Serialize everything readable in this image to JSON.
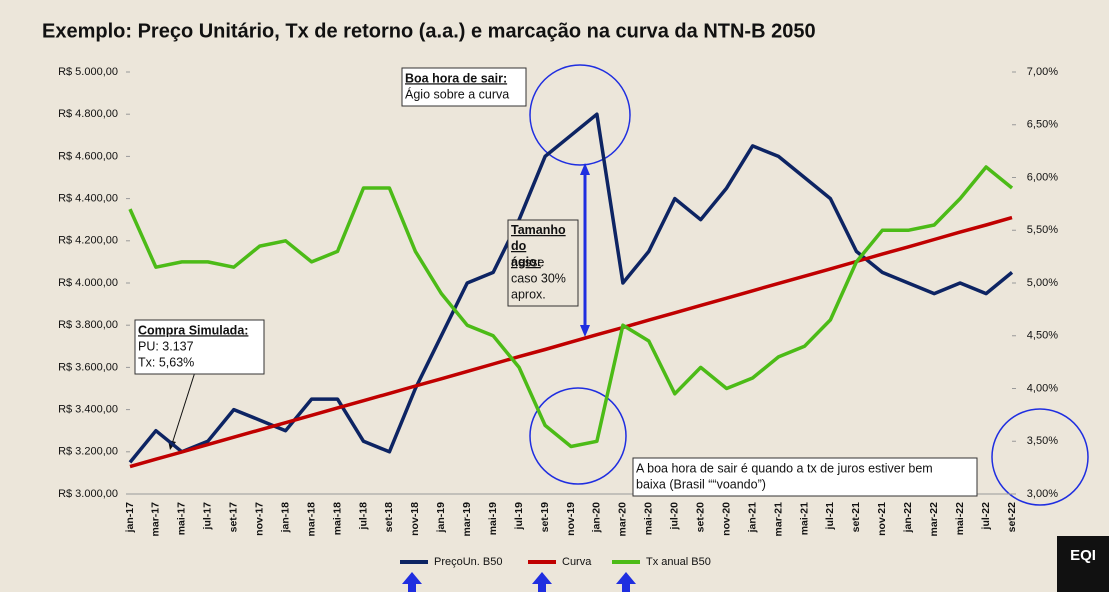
{
  "chart_data": {
    "type": "line",
    "title": "Exemplo: Preço Unitário, Tx de retorno (a.a.) e marcação na curva da NTN-B 2050",
    "categories": [
      "jan-17",
      "mar-17",
      "mai-17",
      "jul-17",
      "set-17",
      "nov-17",
      "jan-18",
      "mar-18",
      "mai-18",
      "jul-18",
      "set-18",
      "nov-18",
      "jan-19",
      "mar-19",
      "mai-19",
      "jul-19",
      "set-19",
      "nov-19",
      "jan-20",
      "mar-20",
      "mai-20",
      "jul-20",
      "set-20",
      "nov-20",
      "jan-21",
      "mar-21",
      "mai-21",
      "jul-21",
      "set-21",
      "nov-21",
      "jan-22",
      "mar-22",
      "mai-22",
      "jul-22",
      "set-22"
    ],
    "series": [
      {
        "name": "PreçoUn. B50",
        "color": "#0d2463",
        "axis": "y",
        "values": [
          3150,
          3300,
          3200,
          3250,
          3400,
          3350,
          3300,
          3450,
          3450,
          3250,
          3200,
          3500,
          3750,
          4000,
          4050,
          4300,
          4600,
          4700,
          4800,
          4000,
          4150,
          4400,
          4300,
          4450,
          4650,
          4600,
          4500,
          4400,
          4150,
          4050,
          4000,
          3950,
          4000,
          3950,
          4050
        ]
      },
      {
        "name": "Curva",
        "color": "#c00000",
        "axis": "y",
        "values": [
          3130,
          3165,
          3199,
          3234,
          3269,
          3304,
          3338,
          3373,
          3408,
          3442,
          3477,
          3512,
          3546,
          3581,
          3616,
          3651,
          3685,
          3720,
          3755,
          3789,
          3824,
          3859,
          3894,
          3928,
          3963,
          3998,
          4032,
          4067,
          4102,
          4137,
          4171,
          4206,
          4241,
          4275,
          4310
        ]
      },
      {
        "name": "Tx anual B50",
        "color": "#4cbb17",
        "axis": "y2",
        "values": [
          5.7,
          5.15,
          5.2,
          5.2,
          5.15,
          5.35,
          5.4,
          5.2,
          5.3,
          5.9,
          5.9,
          5.3,
          4.9,
          4.6,
          4.5,
          4.2,
          3.65,
          3.45,
          3.5,
          4.6,
          4.45,
          3.95,
          4.2,
          4.0,
          4.1,
          4.3,
          4.4,
          4.65,
          5.2,
          5.5,
          5.5,
          5.55,
          5.8,
          6.1,
          5.9
        ]
      }
    ],
    "ylim": [
      3000,
      5000
    ],
    "yticks": [
      {
        "value": 3000,
        "label": "R$ 3.000,00"
      },
      {
        "value": 3200,
        "label": "R$ 3.200,00"
      },
      {
        "value": 3400,
        "label": "R$ 3.400,00"
      },
      {
        "value": 3600,
        "label": "R$ 3.600,00"
      },
      {
        "value": 3800,
        "label": "R$ 3.800,00"
      },
      {
        "value": 4000,
        "label": "R$ 4.000,00"
      },
      {
        "value": 4200,
        "label": "R$ 4.200,00"
      },
      {
        "value": 4400,
        "label": "R$ 4.400,00"
      },
      {
        "value": 4600,
        "label": "R$ 4.600,00"
      },
      {
        "value": 4800,
        "label": "R$ 4.800,00"
      },
      {
        "value": 5000,
        "label": "R$ 5.000,00"
      }
    ],
    "y2lim": [
      3,
      7
    ],
    "y2ticks": [
      {
        "value": 3,
        "label": "3,00%"
      },
      {
        "value": 3.5,
        "label": "3,50%"
      },
      {
        "value": 4,
        "label": "4,00%"
      },
      {
        "value": 4.5,
        "label": "4,50%"
      },
      {
        "value": 5,
        "label": "5,00%"
      },
      {
        "value": 5.5,
        "label": "5,50%"
      },
      {
        "value": 6,
        "label": "6,00%"
      },
      {
        "value": 6.5,
        "label": "6,50%"
      },
      {
        "value": 7,
        "label": "7,00%"
      }
    ],
    "grid": false,
    "legend": "bottom",
    "annotations": [
      {
        "title": "Boa hora de sair:",
        "lines": [
          "Ágio sobre a curva"
        ]
      },
      {
        "title": "Tamanho do ágio:",
        "lines": [
          "nesse",
          "caso 30%",
          "aprox."
        ]
      },
      {
        "title": "Compra Simulada:",
        "lines": [
          "PU: 3.137",
          "Tx: 5,63%"
        ]
      },
      {
        "lines": [
          "A boa hora de sair é quando a tx de juros estiver bem",
          "baixa (Brasil ““voando”)"
        ]
      }
    ],
    "logo": "EQI"
  }
}
